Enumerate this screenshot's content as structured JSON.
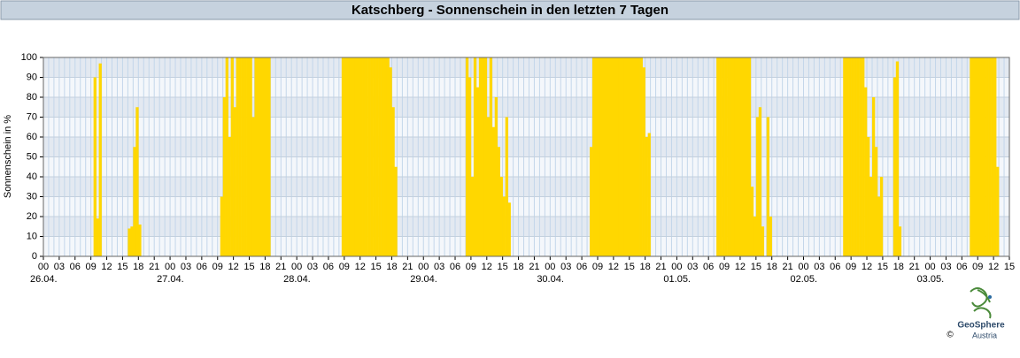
{
  "chart_data": {
    "type": "bar",
    "title": "Katschberg - Sonnenschein in den letzten 7 Tagen",
    "y_label": "Sonnenschein in %",
    "color": "#ffd700",
    "grid": true,
    "x": [
      9.5,
      10,
      10.5,
      16,
      16.5,
      17,
      17.5,
      18,
      33.5,
      34,
      34.5,
      35,
      35.5,
      36,
      36.5,
      37,
      37.5,
      38,
      38.5,
      39,
      39.5,
      40,
      40.5,
      41,
      41.5,
      42,
      42.5,
      56.5,
      57,
      57.5,
      58,
      58.5,
      59,
      59.5,
      60,
      60.5,
      61,
      61.5,
      62,
      62.5,
      63,
      63.5,
      64,
      64.5,
      65,
      65.5,
      66,
      66.5,
      80,
      80.5,
      81,
      81.5,
      82,
      82.5,
      83,
      83.5,
      84,
      84.5,
      85,
      85.5,
      86,
      86.5,
      87,
      87.5,
      88,
      103.5,
      104,
      104.5,
      105,
      105.5,
      106,
      106.5,
      107,
      107.5,
      108,
      108.5,
      109,
      109.5,
      110,
      110.5,
      111,
      111.5,
      112,
      112.5,
      113,
      113.5,
      114,
      114.5,
      127.5,
      128,
      128.5,
      129,
      129.5,
      130,
      130.5,
      131,
      131.5,
      132,
      132.5,
      133,
      133.5,
      134,
      134.5,
      135,
      135.5,
      136,
      137,
      137.5,
      151.5,
      152,
      152.5,
      153,
      153.5,
      154,
      154.5,
      155,
      155.5,
      156,
      156.5,
      157,
      157.5,
      158,
      158.5,
      161,
      161.5,
      162,
      175.5,
      176,
      176.5,
      177,
      177.5,
      178,
      178.5,
      179,
      179.5,
      180,
      180.5
    ],
    "values": [
      90,
      19,
      97,
      14,
      15,
      55,
      75,
      16,
      30,
      80,
      100,
      60,
      100,
      75,
      100,
      100,
      100,
      100,
      100,
      100,
      70,
      100,
      100,
      100,
      100,
      100,
      100,
      100,
      100,
      100,
      100,
      100,
      100,
      100,
      100,
      100,
      100,
      100,
      100,
      100,
      100,
      100,
      100,
      100,
      100,
      95,
      75,
      45,
      100,
      90,
      40,
      100,
      85,
      100,
      100,
      100,
      70,
      100,
      65,
      80,
      55,
      40,
      30,
      70,
      27,
      55,
      100,
      100,
      100,
      100,
      100,
      100,
      100,
      100,
      100,
      100,
      100,
      100,
      100,
      100,
      100,
      100,
      100,
      100,
      100,
      95,
      60,
      62,
      100,
      100,
      100,
      100,
      100,
      100,
      100,
      100,
      100,
      100,
      100,
      100,
      100,
      35,
      20,
      70,
      75,
      15,
      70,
      20,
      100,
      100,
      100,
      100,
      100,
      100,
      100,
      100,
      85,
      60,
      40,
      80,
      55,
      30,
      40,
      90,
      98,
      15,
      100,
      100,
      100,
      100,
      100,
      100,
      100,
      100,
      100,
      100,
      45
    ],
    "xlim": [
      0,
      183
    ],
    "ylim": [
      0,
      100
    ],
    "yticks": [
      0,
      10,
      20,
      30,
      40,
      50,
      60,
      70,
      80,
      90,
      100
    ],
    "xticks": [
      {
        "value": 0,
        "label": "00"
      },
      {
        "value": 3,
        "label": "03"
      },
      {
        "value": 6,
        "label": "06"
      },
      {
        "value": 9,
        "label": "09"
      },
      {
        "value": 12,
        "label": "12"
      },
      {
        "value": 15,
        "label": "15"
      },
      {
        "value": 18,
        "label": "18"
      },
      {
        "value": 21,
        "label": "21"
      },
      {
        "value": 24,
        "label": "00"
      },
      {
        "value": 27,
        "label": "03"
      },
      {
        "value": 30,
        "label": "06"
      },
      {
        "value": 33,
        "label": "09"
      },
      {
        "value": 36,
        "label": "12"
      },
      {
        "value": 39,
        "label": "15"
      },
      {
        "value": 42,
        "label": "18"
      },
      {
        "value": 45,
        "label": "21"
      },
      {
        "value": 48,
        "label": "00"
      },
      {
        "value": 51,
        "label": "03"
      },
      {
        "value": 54,
        "label": "06"
      },
      {
        "value": 57,
        "label": "09"
      },
      {
        "value": 60,
        "label": "12"
      },
      {
        "value": 63,
        "label": "15"
      },
      {
        "value": 66,
        "label": "18"
      },
      {
        "value": 69,
        "label": "21"
      },
      {
        "value": 72,
        "label": "00"
      },
      {
        "value": 75,
        "label": "03"
      },
      {
        "value": 78,
        "label": "06"
      },
      {
        "value": 81,
        "label": "09"
      },
      {
        "value": 84,
        "label": "12"
      },
      {
        "value": 87,
        "label": "15"
      },
      {
        "value": 90,
        "label": "18"
      },
      {
        "value": 93,
        "label": "21"
      },
      {
        "value": 96,
        "label": "00"
      },
      {
        "value": 99,
        "label": "03"
      },
      {
        "value": 102,
        "label": "06"
      },
      {
        "value": 105,
        "label": "09"
      },
      {
        "value": 108,
        "label": "12"
      },
      {
        "value": 111,
        "label": "15"
      },
      {
        "value": 114,
        "label": "18"
      },
      {
        "value": 117,
        "label": "21"
      },
      {
        "value": 120,
        "label": "00"
      },
      {
        "value": 123,
        "label": "03"
      },
      {
        "value": 126,
        "label": "06"
      },
      {
        "value": 129,
        "label": "09"
      },
      {
        "value": 132,
        "label": "12"
      },
      {
        "value": 135,
        "label": "15"
      },
      {
        "value": 138,
        "label": "18"
      },
      {
        "value": 141,
        "label": "21"
      },
      {
        "value": 144,
        "label": "00"
      },
      {
        "value": 147,
        "label": "03"
      },
      {
        "value": 150,
        "label": "06"
      },
      {
        "value": 153,
        "label": "09"
      },
      {
        "value": 156,
        "label": "12"
      },
      {
        "value": 159,
        "label": "15"
      },
      {
        "value": 162,
        "label": "18"
      },
      {
        "value": 165,
        "label": "21"
      },
      {
        "value": 168,
        "label": "00"
      },
      {
        "value": 171,
        "label": "03"
      },
      {
        "value": 174,
        "label": "06"
      },
      {
        "value": 177,
        "label": "09"
      },
      {
        "value": 180,
        "label": "12"
      },
      {
        "value": 183,
        "label": "15"
      }
    ],
    "date_labels": [
      {
        "value": 0,
        "label": "26.04."
      },
      {
        "value": 24,
        "label": "27.04."
      },
      {
        "value": 48,
        "label": "28.04."
      },
      {
        "value": 72,
        "label": "29.04."
      },
      {
        "value": 96,
        "label": "30.04."
      },
      {
        "value": 120,
        "label": "01.05."
      },
      {
        "value": 144,
        "label": "02.05."
      },
      {
        "value": 168,
        "label": "03.05."
      }
    ]
  },
  "logo": {
    "name": "GeoSphere",
    "sub": "Austria",
    "copyright": "©"
  }
}
